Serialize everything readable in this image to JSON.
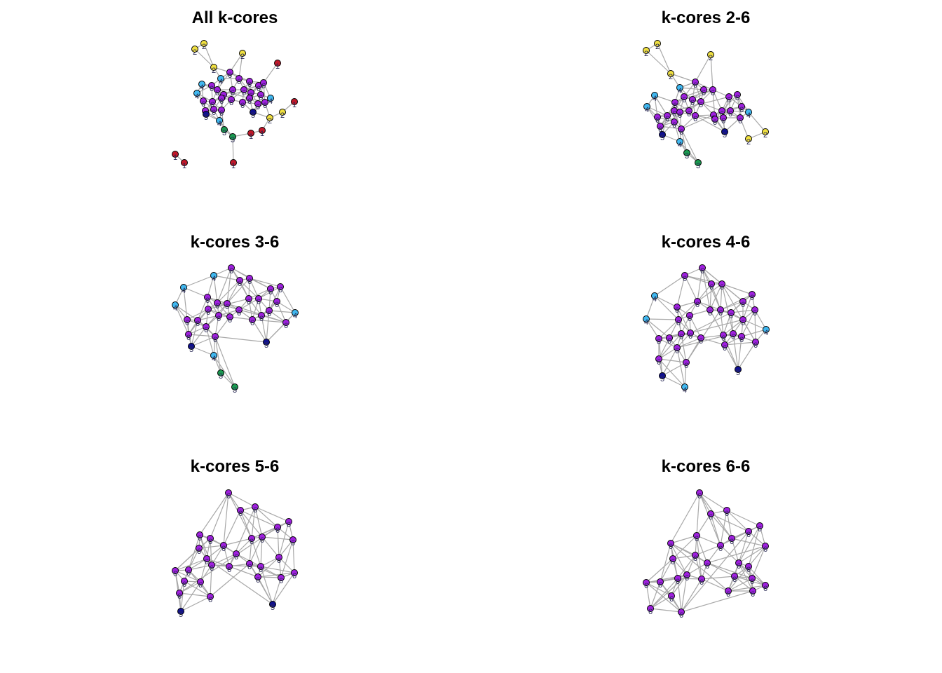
{
  "panels": [
    {
      "title": "All k-cores",
      "min_core": 1
    },
    {
      "title": "k-cores 2-6",
      "min_core": 2
    },
    {
      "title": "k-cores 3-6",
      "min_core": 3
    },
    {
      "title": "k-cores 4-6",
      "min_core": 4
    },
    {
      "title": "k-cores 5-6",
      "min_core": 5
    },
    {
      "title": "k-cores 6-6",
      "min_core": 6
    }
  ],
  "core_colors": {
    "1": "#c0182a",
    "2": "#f0e040",
    "3": "#1a9a50",
    "4": "#40b8f0",
    "5": "#101090",
    "6": "#a020e0"
  }
}
